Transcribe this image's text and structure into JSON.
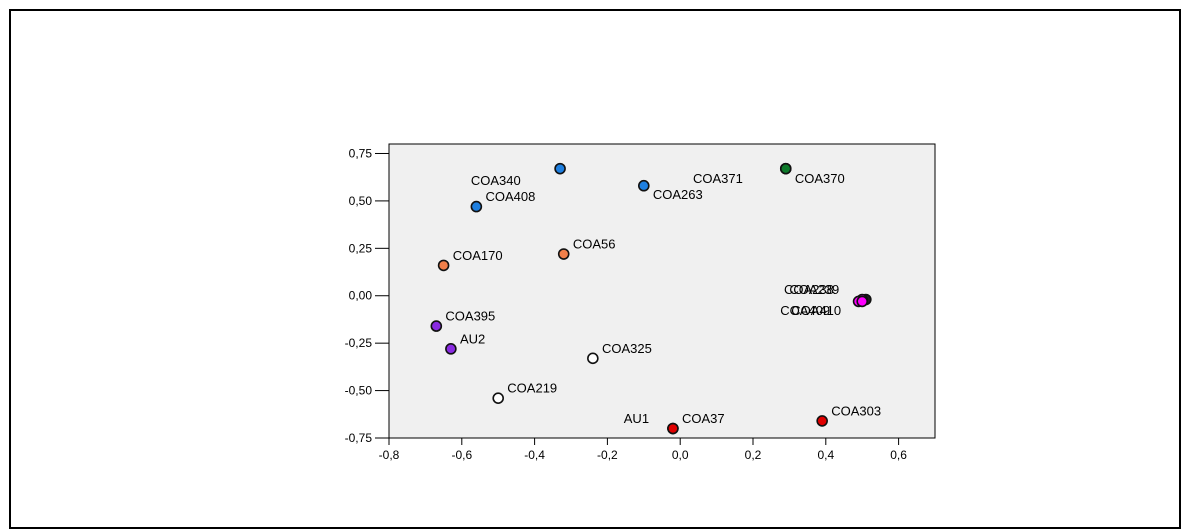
{
  "chart_data": {
    "type": "scatter",
    "title": "",
    "xlabel": "",
    "ylabel": "",
    "xlim": [
      -0.8,
      0.7
    ],
    "ylim": [
      -0.75,
      0.8
    ],
    "x_ticks": [
      -0.8,
      -0.6,
      -0.4,
      -0.2,
      0.0,
      0.2,
      0.4,
      0.6
    ],
    "x_tick_labels": [
      "-0,8",
      "-0,6",
      "-0,4",
      "-0,2",
      "0,0",
      "0,2",
      "0,4",
      "0,6"
    ],
    "y_ticks": [
      0.75,
      0.5,
      0.25,
      0.0,
      -0.25,
      -0.5,
      -0.75
    ],
    "y_tick_labels": [
      "0,75",
      "0,50",
      "0,25",
      "0,00",
      "-0,25",
      "-0,50",
      "-0,75"
    ],
    "grid": false,
    "plot_background": "#f0f0f0",
    "points": [
      {
        "x": -0.33,
        "y": 0.67,
        "color": "#1e7fe0",
        "label": "COA340",
        "label_dx": -0.245,
        "label_dy": -0.065
      },
      {
        "x": -0.56,
        "y": 0.47,
        "color": "#1e7fe0",
        "label": "COA408",
        "label_dx": 0.025,
        "label_dy": 0.05
      },
      {
        "x": -0.1,
        "y": 0.58,
        "color": "#1e7fe0",
        "label": "COA263",
        "label_dx": 0.025,
        "label_dy": -0.05
      },
      {
        "x": 0.29,
        "y": 0.67,
        "color": "#0d7a2a",
        "label": "COA370",
        "label_dx": 0.025,
        "label_dy": -0.055
      },
      {
        "x": 0.29,
        "y": 0.67,
        "color": "#0d7a2a",
        "label": "COA371",
        "label_dx": -0.255,
        "label_dy": -0.055
      },
      {
        "x": -0.65,
        "y": 0.16,
        "color": "#f07f4a",
        "label": "COA170",
        "label_dx": 0.025,
        "label_dy": 0.05
      },
      {
        "x": -0.32,
        "y": 0.22,
        "color": "#f07f4a",
        "label": "COA56",
        "label_dx": 0.025,
        "label_dy": 0.05
      },
      {
        "x": -0.67,
        "y": -0.16,
        "color": "#8a2be2",
        "label": "COA395",
        "label_dx": 0.025,
        "label_dy": 0.05
      },
      {
        "x": -0.63,
        "y": -0.28,
        "color": "#8a2be2",
        "label": "AU2",
        "label_dx": 0.025,
        "label_dy": 0.05
      },
      {
        "x": -0.24,
        "y": -0.33,
        "color": "#ffffff",
        "label": "COA325",
        "label_dx": 0.025,
        "label_dy": 0.05
      },
      {
        "x": -0.5,
        "y": -0.54,
        "color": "#ffffff",
        "label": "COA219",
        "label_dx": 0.025,
        "label_dy": 0.05
      },
      {
        "x": -0.02,
        "y": -0.7,
        "color": "#e00000",
        "label": "AU1",
        "label_dx": -0.135,
        "label_dy": 0.05
      },
      {
        "x": -0.02,
        "y": -0.7,
        "color": "#e00000",
        "label": "COA37",
        "label_dx": 0.025,
        "label_dy": 0.05
      },
      {
        "x": 0.39,
        "y": -0.66,
        "color": "#e00000",
        "label": "COA303",
        "label_dx": 0.025,
        "label_dy": 0.05
      },
      {
        "x": 0.51,
        "y": -0.02,
        "color": "#202020",
        "label": "COA238",
        "label_dx": -0.225,
        "label_dy": 0.05
      },
      {
        "x": 0.5,
        "y": -0.02,
        "color": "#ff00ff",
        "label": "COA239",
        "label_dx": -0.2,
        "label_dy": 0.05
      },
      {
        "x": 0.49,
        "y": -0.03,
        "color": "#ff00ff",
        "label": "COA409",
        "label_dx": -0.215,
        "label_dy": -0.05
      },
      {
        "x": 0.5,
        "y": -0.03,
        "color": "#ff00ff",
        "label": "COA410",
        "label_dx": -0.195,
        "label_dy": -0.05
      }
    ]
  }
}
